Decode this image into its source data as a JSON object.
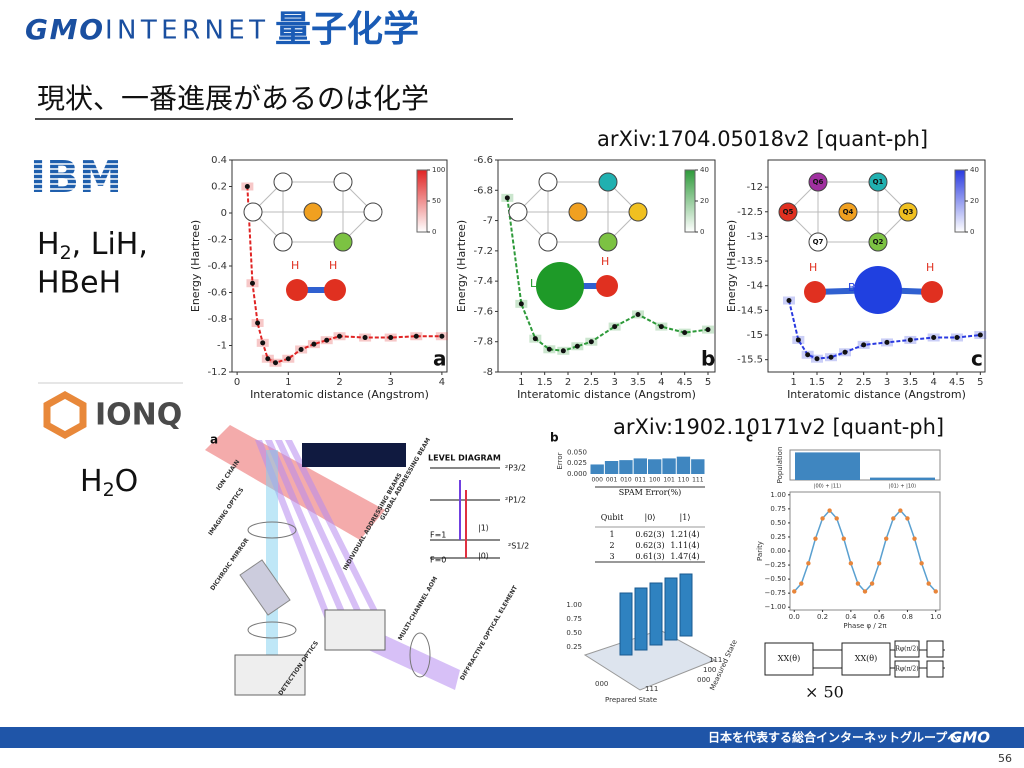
{
  "header": {
    "logo_bold": "GMO",
    "logo_light": "INTERNET",
    "tag": "量子化学"
  },
  "title": "現状、一番進展があるのは化学",
  "ibm": {
    "logo": "IBM",
    "molecules": {
      "h": "H",
      "sub": "2",
      "rest": ", LiH,",
      "line2": "HBeH"
    }
  },
  "ionq": {
    "logo": "IONQ",
    "molecule": {
      "h": "H",
      "sub": "2",
      "o": "O"
    }
  },
  "refs": [
    "arXiv:1704.05018v2 [quant-ph]",
    "arXiv:1902.10171v2 [quant-ph]"
  ],
  "ibm_figure": {
    "xlabel": "Interatomic distance (Angstrom)",
    "ylabel": "Energy (Hartree)",
    "panels": [
      {
        "letter": "a",
        "color": "#e02424",
        "ylim": [
          -1.2,
          0.4
        ],
        "yticks": [
          0.4,
          0.2,
          0,
          -0.2,
          -0.4,
          -0.6,
          -0.8,
          -1,
          -1.2
        ],
        "xlim": [
          -0.1,
          4.1
        ],
        "xticks": [
          0,
          1,
          2,
          3,
          4
        ],
        "colorbar": [
          100,
          50,
          0
        ],
        "points": {
          "x": [
            0.2,
            0.3,
            0.4,
            0.5,
            0.6,
            0.75,
            1.0,
            1.25,
            1.5,
            1.75,
            2.0,
            2.5,
            3.0,
            3.5,
            4.0
          ],
          "y": [
            0.2,
            -0.53,
            -0.83,
            -0.98,
            -1.1,
            -1.13,
            -1.1,
            -1.03,
            -0.99,
            -0.96,
            -0.93,
            -0.94,
            -0.94,
            -0.93,
            -0.93
          ]
        },
        "qubits": {
          "Q6": "#fff",
          "Q1": "#fff",
          "Q5": "#fff",
          "Q4": "#f0a020",
          "Q3": "#fff",
          "Q7": "#fff",
          "Q2": "#7cc242"
        },
        "atoms": [
          {
            "label": "H",
            "color": "#e03020"
          },
          {
            "label": "H",
            "color": "#e03020"
          }
        ]
      },
      {
        "letter": "b",
        "color": "#2e9a3a",
        "ylim": [
          -8,
          -6.6
        ],
        "yticks": [
          -6.6,
          -6.8,
          -7,
          -7.2,
          -7.4,
          -7.6,
          -7.8,
          -8
        ],
        "xlim": [
          0.5,
          5.15
        ],
        "xticks": [
          1,
          1.5,
          2,
          2.5,
          3,
          3.5,
          4,
          4.5,
          5
        ],
        "colorbar": [
          40,
          20,
          0
        ],
        "points": {
          "x": [
            0.7,
            1.0,
            1.3,
            1.6,
            1.9,
            2.2,
            2.5,
            3.0,
            3.5,
            4.0,
            4.5,
            5.0
          ],
          "y": [
            -6.85,
            -7.55,
            -7.78,
            -7.85,
            -7.86,
            -7.83,
            -7.8,
            -7.7,
            -7.62,
            -7.7,
            -7.74,
            -7.72
          ]
        },
        "qubits": {
          "Q6": "#fff",
          "Q1": "#20b0b0",
          "Q5": "#fff",
          "Q4": "#f0a020",
          "Q3": "#f0c020",
          "Q7": "#fff",
          "Q2": "#7cc242"
        },
        "atoms": [
          {
            "label": "Li",
            "color": "#1e9a28"
          },
          {
            "label": "H",
            "color": "#e03020"
          }
        ]
      },
      {
        "letter": "c",
        "color": "#2a3ae0",
        "ylim": [
          -15.75,
          -11.45
        ],
        "yticks": [
          -12,
          -12.5,
          -13,
          -13.5,
          -14,
          -14.5,
          -15,
          -15.5
        ],
        "xlim": [
          0.45,
          5.1
        ],
        "xticks": [
          1,
          1.5,
          2,
          2.5,
          3,
          3.5,
          4,
          4.5,
          5
        ],
        "colorbar": [
          40,
          20,
          0
        ],
        "points": {
          "x": [
            0.9,
            1.1,
            1.3,
            1.5,
            1.8,
            2.1,
            2.5,
            3.0,
            3.5,
            4.0,
            4.5,
            5.0
          ],
          "y": [
            -14.3,
            -15.1,
            -15.4,
            -15.48,
            -15.45,
            -15.35,
            -15.2,
            -15.15,
            -15.1,
            -15.05,
            -15.05,
            -15.0
          ]
        },
        "qubits": {
          "Q6": "#a030a0",
          "Q1": "#20b0b0",
          "Q5": "#e03020",
          "Q4": "#f0a020",
          "Q3": "#f0c020",
          "Q7": "#fff",
          "Q2": "#7cc242"
        },
        "atoms": [
          {
            "label": "H",
            "color": "#e03020"
          },
          {
            "label": "Be",
            "color": "#2040e0"
          },
          {
            "label": "H",
            "color": "#e03020"
          }
        ]
      }
    ]
  },
  "ionq_figure": {
    "a": {
      "letter": "a",
      "level_title": "LEVEL DIAGRAM",
      "levels": [
        "²P3/2",
        "²P1/2",
        "|1⟩",
        "|0⟩",
        "F=1",
        "F=0",
        "²S1/2"
      ],
      "parts": [
        "ION CHAIN",
        "IMAGING OPTICS",
        "DICHROIC MIRROR",
        "DETECTION OPTICS",
        "GLOBAL ADDRESSING BEAM",
        "INDIVIDUAL ADDRESSING BEAMS",
        "MULTI-CHANNEL AOM",
        "DIFFRACTIVE OPTICAL ELEMENT"
      ]
    },
    "b": {
      "letter": "b",
      "ylabel": "Error",
      "yticks": [
        {
          "value": 0.05,
          "label": "0.050"
        },
        {
          "value": 0.025,
          "label": "0.025"
        },
        {
          "value": 0,
          "label": "0.000"
        }
      ],
      "ylim": [
        0,
        0.06
      ],
      "categories": [
        "000",
        "001",
        "010",
        "011",
        "100",
        "101",
        "110",
        "111"
      ],
      "values": [
        0.022,
        0.03,
        0.032,
        0.036,
        0.034,
        0.036,
        0.04,
        0.034
      ],
      "color": "#3f86c0",
      "table": {
        "caption": "SPAM Error(%)",
        "head": [
          "Qubit",
          "|0⟩",
          "|1⟩"
        ],
        "rows": [
          [
            "1",
            "0.62(3)",
            "1.21(4)"
          ],
          [
            "2",
            "0.62(3)",
            "1.11(4)"
          ],
          [
            "3",
            "0.61(3)",
            "1.47(4)"
          ]
        ]
      },
      "bars3d": {
        "zticks": [
          "1.00",
          "0.75",
          "0.50",
          "0.25"
        ],
        "xaxis": [
          "000",
          "111"
        ],
        "yaxis": [
          "000",
          "100",
          "111"
        ],
        "xlabel": "Prepared State",
        "ylabel": "Measured State"
      }
    },
    "c": {
      "letter": "c",
      "pop_ylabel": "Population",
      "pop_categories": [
        "|00⟩ + |11⟩",
        "|01⟩ + |10⟩"
      ],
      "pop_values": [
        0.92,
        0.08
      ],
      "pop_ylim": [
        0,
        1
      ],
      "ylabel": "Parity",
      "xlabel": "Phase  φ / 2π",
      "color": "#e8853a",
      "line_color": "#5aa0d0",
      "ylim": [
        -1.05,
        1.05
      ],
      "xlim": [
        -0.03,
        1.03
      ],
      "yticks": [
        {
          "value": 1,
          "label": "1.00"
        },
        {
          "value": 0.75,
          "label": "0.75"
        },
        {
          "value": 0.5,
          "label": "0.50"
        },
        {
          "value": 0.25,
          "label": "0.25"
        },
        {
          "value": 0,
          "label": "0.00"
        },
        {
          "value": -0.25,
          "label": "−0.25"
        },
        {
          "value": -0.5,
          "label": "−0.50"
        },
        {
          "value": -0.75,
          "label": "−0.75"
        },
        {
          "value": -1,
          "label": "−1.00"
        }
      ],
      "xticks": [
        {
          "value": 0,
          "label": "0.0"
        },
        {
          "value": 0.2,
          "label": "0.2"
        },
        {
          "value": 0.4,
          "label": "0.4"
        },
        {
          "value": 0.6,
          "label": "0.6"
        },
        {
          "value": 0.8,
          "label": "0.8"
        },
        {
          "value": 1,
          "label": "1.0"
        }
      ],
      "x": [
        0,
        0.05,
        0.1,
        0.15,
        0.2,
        0.25,
        0.3,
        0.35,
        0.4,
        0.45,
        0.5,
        0.55,
        0.6,
        0.65,
        0.7,
        0.75,
        0.8,
        0.85,
        0.9,
        0.95,
        1
      ],
      "y": [
        -0.72,
        -0.58,
        -0.22,
        0.22,
        0.58,
        0.72,
        0.58,
        0.22,
        -0.22,
        -0.58,
        -0.72,
        -0.58,
        -0.22,
        0.22,
        0.58,
        0.72,
        0.58,
        0.22,
        -0.22,
        -0.58,
        -0.72
      ],
      "gates": [
        "XX(θ)",
        "XX(θ)",
        "Rφ(π/2)",
        "Rφ(π/2)"
      ],
      "repeat": "× 50"
    }
  },
  "footer": {
    "slogan": "日本を代表する総合インターネットグループへ",
    "logo": "GMO",
    "page": "56"
  }
}
